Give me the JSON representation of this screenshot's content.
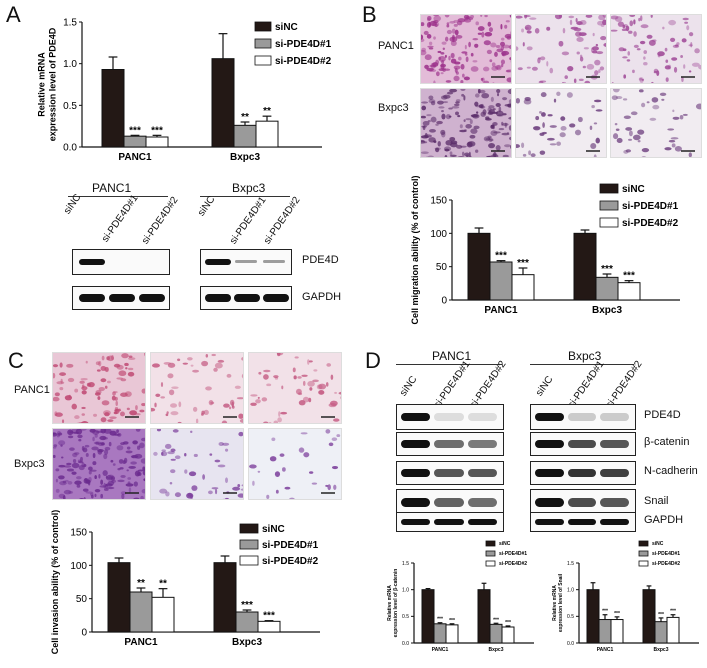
{
  "panels": {
    "a": "A",
    "b": "B",
    "c": "C",
    "d": "D"
  },
  "cell_lines": [
    "PANC1",
    "Bxpc3"
  ],
  "lanes": [
    "siNC",
    "si-PDE4D#1",
    "si-PDE4D#2"
  ],
  "blot_a": {
    "proteins": [
      "PDE4D",
      "GAPDH"
    ]
  },
  "blot_d": {
    "proteins": [
      "PDE4D",
      "β-catenin",
      "N-cadherin",
      "Snail",
      "GAPDH"
    ]
  },
  "colors": {
    "siNC": "#231815",
    "si1": "#9a9a9a",
    "si2": "#ffffff",
    "he_pink": "#d98aa6",
    "crystal": "#8a4aa6"
  },
  "chart_data": [
    {
      "id": "A",
      "type": "bar",
      "ylabel": "Relative mRNA expression level of PDE4D",
      "ylim": [
        0,
        1.5
      ],
      "ticks": [
        0.0,
        0.5,
        1.0,
        1.5
      ],
      "categories": [
        "PANC1",
        "Bxpc3"
      ],
      "series": [
        {
          "name": "siNC",
          "values": [
            0.93,
            1.06
          ],
          "err": [
            0.15,
            0.3
          ]
        },
        {
          "name": "si-PDE4D#1",
          "values": [
            0.13,
            0.26
          ],
          "err": [
            0.01,
            0.04
          ]
        },
        {
          "name": "si-PDE4D#2",
          "values": [
            0.12,
            0.31
          ],
          "err": [
            0.02,
            0.06
          ]
        }
      ],
      "sig": [
        [
          "",
          "***",
          "***"
        ],
        [
          "",
          "**",
          "**"
        ]
      ]
    },
    {
      "id": "B",
      "type": "bar",
      "ylabel": "Cell migration ability (% of control)",
      "ylim": [
        0,
        150
      ],
      "ticks": [
        0,
        50,
        100,
        150
      ],
      "categories": [
        "PANC1",
        "Bxpc3"
      ],
      "series": [
        {
          "name": "siNC",
          "values": [
            100,
            100
          ],
          "err": [
            8,
            5
          ]
        },
        {
          "name": "si-PDE4D#1",
          "values": [
            57,
            34
          ],
          "err": [
            2,
            5
          ]
        },
        {
          "name": "si-PDE4D#2",
          "values": [
            38,
            26
          ],
          "err": [
            10,
            3
          ]
        }
      ],
      "sig": [
        [
          "",
          "***",
          "***"
        ],
        [
          "",
          "***",
          "***"
        ]
      ]
    },
    {
      "id": "C",
      "type": "bar",
      "ylabel": "Cell invasion ability (% of control)",
      "ylim": [
        0,
        150
      ],
      "ticks": [
        0,
        50,
        100,
        150
      ],
      "categories": [
        "PANC1",
        "Bxpc3"
      ],
      "series": [
        {
          "name": "siNC",
          "values": [
            104,
            104
          ],
          "err": [
            7,
            10
          ]
        },
        {
          "name": "si-PDE4D#1",
          "values": [
            60,
            30
          ],
          "err": [
            6,
            3
          ]
        },
        {
          "name": "si-PDE4D#2",
          "values": [
            52,
            16
          ],
          "err": [
            13,
            1
          ]
        }
      ],
      "sig": [
        [
          "",
          "**",
          "**"
        ],
        [
          "",
          "***",
          "***"
        ]
      ]
    },
    {
      "id": "D1",
      "type": "bar",
      "ylabel": "Relative mRNA expression level of β-catenin",
      "ylim": [
        0,
        1.5
      ],
      "ticks": [
        0.0,
        0.5,
        1.0,
        1.5
      ],
      "categories": [
        "PANC1",
        "Bxpc3"
      ],
      "series": [
        {
          "name": "siNC",
          "values": [
            1.0,
            1.0
          ],
          "err": [
            0.02,
            0.12
          ]
        },
        {
          "name": "si-PDE4D#1",
          "values": [
            0.36,
            0.35
          ],
          "err": [
            0.02,
            0.02
          ]
        },
        {
          "name": "si-PDE4D#2",
          "values": [
            0.34,
            0.3
          ],
          "err": [
            0.02,
            0.02
          ]
        }
      ],
      "sig": [
        [
          "",
          "***",
          "***"
        ],
        [
          "",
          "***",
          "***"
        ]
      ]
    },
    {
      "id": "D2",
      "type": "bar",
      "ylabel": "Relative mRNA expression level of Snail",
      "ylim": [
        0,
        1.5
      ],
      "ticks": [
        0.0,
        0.5,
        1.0,
        1.5
      ],
      "categories": [
        "PANC1",
        "Bxpc3"
      ],
      "series": [
        {
          "name": "siNC",
          "values": [
            1.0,
            1.0
          ],
          "err": [
            0.13,
            0.07
          ]
        },
        {
          "name": "si-PDE4D#1",
          "values": [
            0.44,
            0.4
          ],
          "err": [
            0.09,
            0.07
          ]
        },
        {
          "name": "si-PDE4D#2",
          "values": [
            0.44,
            0.48
          ],
          "err": [
            0.05,
            0.05
          ]
        }
      ],
      "sig": [
        [
          "",
          "***",
          "***"
        ],
        [
          "",
          "***",
          "***"
        ]
      ]
    }
  ]
}
